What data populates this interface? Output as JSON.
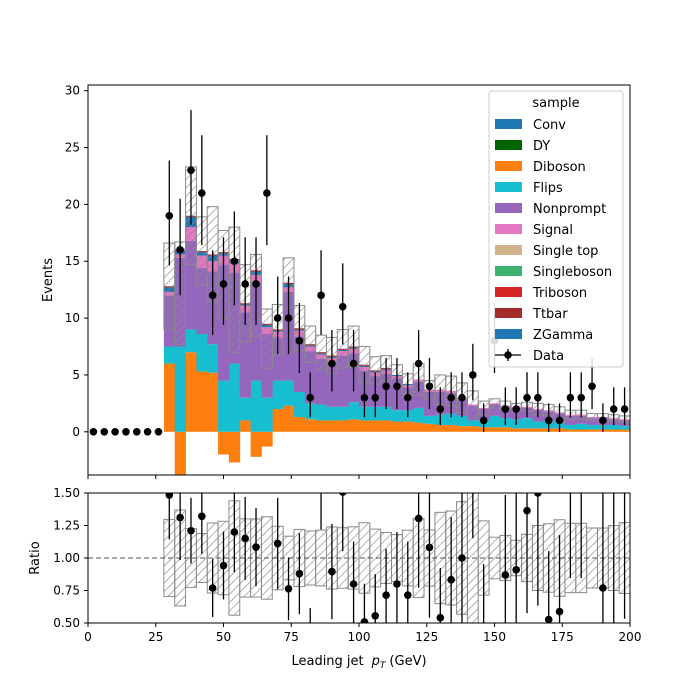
{
  "chart_data": [
    {
      "type": "bar",
      "subtype": "stacked-histogram",
      "xlim": [
        0,
        200
      ],
      "ylim": [
        -3.8,
        30.5
      ],
      "ylabel": "Events",
      "yticks": [
        0,
        5,
        10,
        15,
        20,
        25,
        30
      ],
      "bin_edges": [
        0,
        4,
        8,
        12,
        16,
        20,
        24,
        28,
        32,
        36,
        40,
        44,
        48,
        52,
        56,
        60,
        64,
        68,
        72,
        76,
        80,
        84,
        88,
        92,
        96,
        100,
        104,
        108,
        112,
        116,
        120,
        124,
        128,
        132,
        136,
        140,
        144,
        148,
        152,
        156,
        160,
        164,
        168,
        172,
        176,
        180,
        184,
        188,
        192,
        196,
        200
      ],
      "legend": {
        "title": "sample",
        "placement": "top-right",
        "entries": [
          "Conv",
          "DY",
          "Diboson",
          "Flips",
          "Nonprompt",
          "Signal",
          "Single top",
          "Singleboson",
          "Triboson",
          "Ttbar",
          "ZGamma",
          "Data"
        ]
      },
      "colors": {
        "Conv": "#1f77b4",
        "DY": "#006400",
        "Diboson": "#ff7f0e",
        "Flips": "#17becf",
        "Nonprompt": "#9467bd",
        "Signal": "#e377c2",
        "Single top": "#d2b48c",
        "Singleboson": "#3cb371",
        "Triboson": "#d62728",
        "Ttbar": "#a52a2a",
        "ZGamma": "#1f77b4"
      },
      "series": [
        {
          "name": "Diboson",
          "values": [
            0,
            0,
            0,
            0,
            0,
            0,
            0,
            6.0,
            -3.8,
            7.0,
            5.3,
            5.2,
            -2.0,
            -2.7,
            1.0,
            -2.2,
            -1.3,
            2.0,
            2.3,
            1.3,
            1.1,
            1.0,
            1.0,
            1.0,
            1.1,
            1.0,
            1.0,
            1.0,
            0.9,
            0.9,
            0.8,
            0.7,
            0.6,
            0.6,
            0.5,
            0.5,
            0.4,
            0.4,
            0.4,
            0.3,
            0.3,
            0.3,
            0.3,
            0.3,
            0.2,
            0.2,
            0.2,
            0.2,
            0.2,
            0.2
          ]
        },
        {
          "name": "Flips",
          "values": [
            0,
            0,
            0,
            0,
            0,
            0,
            0,
            1.5,
            7.5,
            2.0,
            3.3,
            2.5,
            4.5,
            6.0,
            2.0,
            4.5,
            3.0,
            2.5,
            2.2,
            2.2,
            1.4,
            1.4,
            1.2,
            1.2,
            1.5,
            1.2,
            1.2,
            1.2,
            1.0,
            1.0,
            1.3,
            0.7,
            0.9,
            1.0,
            0.9,
            0.5,
            0.6,
            1.0,
            0.8,
            0.8,
            0.9,
            0.6,
            0.7,
            0.5,
            0.4,
            0.5,
            0.4,
            0.4,
            0.4,
            0.3
          ]
        },
        {
          "name": "Nonprompt",
          "values": [
            0,
            0,
            0,
            0,
            0,
            0,
            0,
            4.5,
            7.8,
            7.8,
            5.8,
            6.4,
            10.2,
            8.0,
            7.5,
            8.7,
            5.6,
            3.8,
            7.8,
            4.9,
            4.6,
            4.0,
            4.0,
            4.5,
            4.3,
            3.2,
            2.7,
            2.9,
            2.8,
            2.0,
            2.3,
            2.1,
            2.0,
            1.8,
            1.4,
            1.3,
            1.0,
            1.0,
            1.0,
            1.0,
            0.9,
            1.0,
            0.8,
            0.8,
            0.8,
            0.7,
            0.6,
            0.6,
            0.5,
            0.5
          ]
        },
        {
          "name": "Signal",
          "values": [
            0,
            0,
            0,
            0,
            0,
            0,
            0,
            0.3,
            0.3,
            1.2,
            1.1,
            0.9,
            0.8,
            0.8,
            0.6,
            0.6,
            0.6,
            0.5,
            0.4,
            0.5,
            0.4,
            0.4,
            0.3,
            0.4,
            0.4,
            0.3,
            0.3,
            0.3,
            0.2,
            0.2,
            0.2,
            0.2,
            0.2,
            0.2,
            0.2,
            0.1,
            0.1,
            0.1,
            0.1,
            0.1,
            0.1,
            0.1,
            0.1,
            0.1,
            0.1,
            0.1,
            0.1,
            0.1,
            0.1,
            0.1
          ]
        },
        {
          "name": "Conv",
          "values": [
            0,
            0,
            0,
            0,
            0,
            0,
            0,
            0.4,
            0.3,
            0.9,
            0.3,
            0.5,
            0.2,
            0.3,
            0.1,
            0.3,
            0.2,
            0.1,
            0.3,
            0.1,
            0.1,
            0.1,
            0.1,
            0.1,
            0.1,
            0.1,
            0.1,
            0.1,
            0.1,
            0.1,
            0,
            0,
            0,
            0,
            0,
            0,
            0,
            0,
            0,
            0,
            0,
            0,
            0,
            0,
            0,
            0,
            0,
            0,
            0,
            0
          ]
        },
        {
          "name": "Ttbar",
          "values": [
            0,
            0,
            0,
            0,
            0,
            0,
            0,
            0.1,
            0.1,
            0.1,
            0.1,
            0.1,
            0.1,
            0.1,
            0.1,
            0.1,
            0.1,
            0.1,
            0.1,
            0.1,
            0.1,
            0.1,
            0.1,
            0.1,
            0.1,
            0.1,
            0.1,
            0.1,
            0,
            0,
            0,
            0,
            0,
            0,
            0,
            0,
            0,
            0,
            0,
            0,
            0,
            0,
            0,
            0,
            0,
            0,
            0,
            0,
            0,
            0
          ]
        }
      ],
      "unc_band": [
        0,
        0,
        0,
        0,
        0,
        0,
        0,
        3.8,
        4.5,
        4.3,
        3.0,
        4.2,
        3.9,
        5.5,
        3.4,
        3.6,
        2.6,
        2.2,
        2.2,
        2.0,
        1.6,
        1.5,
        1.6,
        1.7,
        1.8,
        1.6,
        1.2,
        1.1,
        0.9,
        0.9,
        1.4,
        0.8,
        1.3,
        1.3,
        1.3,
        1.2,
        0.6,
        0.4,
        0.4,
        0.3,
        0.4,
        0.5,
        0.5,
        0.5,
        0.4,
        0.4,
        0.3,
        0.3,
        0.3,
        0.3
      ],
      "data_points": {
        "name": "Data",
        "x": [
          2,
          6,
          10,
          14,
          18,
          22,
          26,
          30,
          34,
          38,
          42,
          46,
          50,
          54,
          58,
          62,
          66,
          70,
          74,
          78,
          82,
          86,
          90,
          94,
          98,
          102,
          106,
          110,
          114,
          118,
          122,
          126,
          130,
          134,
          138,
          142,
          146,
          150,
          154,
          158,
          162,
          166,
          170,
          174,
          178,
          182,
          186,
          190,
          194,
          198
        ],
        "y": [
          0,
          0,
          0,
          0,
          0,
          0,
          0,
          19,
          16,
          23,
          21,
          12,
          13,
          15,
          13,
          13,
          21,
          10,
          10,
          8,
          3,
          12,
          6,
          11,
          6,
          3,
          3,
          4,
          4,
          3,
          6,
          4,
          2,
          3,
          3,
          5,
          1,
          8,
          2,
          2,
          3,
          3,
          1,
          1,
          3,
          3,
          4,
          1,
          2,
          2
        ]
      }
    },
    {
      "type": "scatter",
      "subtype": "ratio",
      "xlim": [
        0,
        200
      ],
      "ylim": [
        0.5,
        1.5
      ],
      "xlabel": "Leading jet",
      "xlabel_math": "p",
      "xlabel_sub": "T",
      "xlabel_unit": "(GeV)",
      "ylabel": "Ratio",
      "xticks": [
        0,
        25,
        50,
        75,
        100,
        125,
        150,
        175,
        200
      ],
      "yticks": [
        "0.50",
        "0.75",
        "1.00",
        "1.25",
        "1.50"
      ],
      "reference_line": 1.0
    }
  ]
}
